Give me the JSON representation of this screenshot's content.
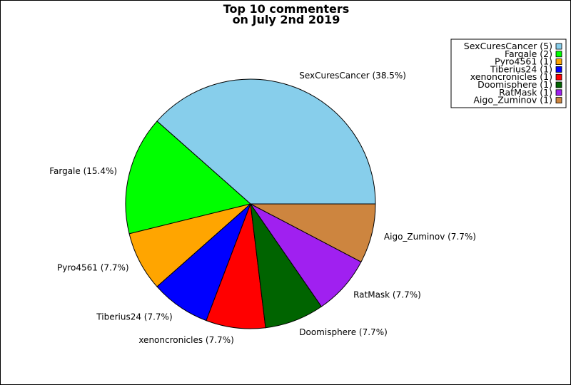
{
  "chart_data": {
    "type": "pie",
    "title_lines": [
      "Top 10 commenters",
      "on July 2nd 2019"
    ],
    "slices": [
      {
        "name": "SexCuresCancer",
        "value": 5,
        "percent_label": "SexCuresCancer (38.5%)",
        "legend_label": "SexCuresCancer (5)",
        "color": "#87CEEB"
      },
      {
        "name": "Fargale",
        "value": 2,
        "percent_label": "Fargale (15.4%)",
        "legend_label": "Fargale (2)",
        "color": "#00FF00"
      },
      {
        "name": "Pyro4561",
        "value": 1,
        "percent_label": "Pyro4561 (7.7%)",
        "legend_label": "Pyro4561 (1)",
        "color": "#FFA500"
      },
      {
        "name": "Tiberius24",
        "value": 1,
        "percent_label": "Tiberius24 (7.7%)",
        "legend_label": "Tiberius24 (1)",
        "color": "#0000FF"
      },
      {
        "name": "xenoncronicles",
        "value": 1,
        "percent_label": "xenoncronicles (7.7%)",
        "legend_label": "xenoncronicles (1)",
        "color": "#FF0000"
      },
      {
        "name": "Doomisphere",
        "value": 1,
        "percent_label": "Doomisphere (7.7%)",
        "legend_label": "Doomisphere (1)",
        "color": "#006400"
      },
      {
        "name": "RatMask",
        "value": 1,
        "percent_label": "RatMask (7.7%)",
        "legend_label": "RatMask (1)",
        "color": "#A020F0"
      },
      {
        "name": "Aigo_Zuminov",
        "value": 1,
        "percent_label": "Aigo_Zuminov (7.7%)",
        "legend_label": "Aigo_Zuminov (1)",
        "color": "#CD853F"
      }
    ],
    "start_angle_deg": 0,
    "direction": "counterclockwise",
    "legend_position": "top-right"
  }
}
